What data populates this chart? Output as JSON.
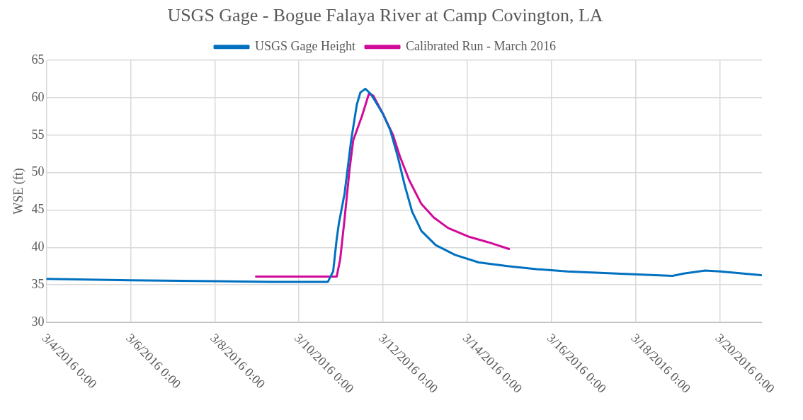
{
  "chart_data": {
    "type": "line",
    "title": "USGS Gage - Bogue Falaya River at Camp Covington, LA",
    "ylabel": "WSE (ft)",
    "xlim": [
      "2016-03-04T00:00",
      "2016-03-21T00:00"
    ],
    "xticks": [
      {
        "value": "2016-03-04T00:00",
        "label": "3/4/2016 0:00"
      },
      {
        "value": "2016-03-06T00:00",
        "label": "3/6/2016 0:00"
      },
      {
        "value": "2016-03-08T00:00",
        "label": "3/8/2016 0:00"
      },
      {
        "value": "2016-03-10T00:00",
        "label": "3/10/2016 0:00"
      },
      {
        "value": "2016-03-12T00:00",
        "label": "3/12/2016 0:00"
      },
      {
        "value": "2016-03-14T00:00",
        "label": "3/14/2016 0:00"
      },
      {
        "value": "2016-03-16T00:00",
        "label": "3/16/2016 0:00"
      },
      {
        "value": "2016-03-18T00:00",
        "label": "3/18/2016 0:00"
      },
      {
        "value": "2016-03-20T00:00",
        "label": "3/20/2016 0:00"
      }
    ],
    "ylim": [
      30,
      65
    ],
    "yticks": [
      30,
      35,
      40,
      45,
      50,
      55,
      60,
      65
    ],
    "grid": true,
    "legend": "top",
    "series": [
      {
        "name": "USGS Gage Height",
        "color": "#0070c0",
        "x": [
          "2016-03-04T00:00",
          "2016-03-06T00:00",
          "2016-03-08T00:00",
          "2016-03-09T08:00",
          "2016-03-10T16:30",
          "2016-03-10T19:30",
          "2016-03-10T21:30",
          "2016-03-10T22:45",
          "2016-03-11T02:00",
          "2016-03-11T05:45",
          "2016-03-11T09:00",
          "2016-03-11T11:00",
          "2016-03-11T13:50",
          "2016-03-11T17:00",
          "2016-03-12T00:00",
          "2016-03-12T04:00",
          "2016-03-12T08:15",
          "2016-03-12T12:25",
          "2016-03-12T16:30",
          "2016-03-12T21:50",
          "2016-03-13T06:00",
          "2016-03-13T17:00",
          "2016-03-14T06:30",
          "2016-03-14T23:00",
          "2016-03-15T15:20",
          "2016-03-16T09:00",
          "2016-03-17T13:10",
          "2016-03-18T21:00",
          "2016-03-19T03:20",
          "2016-03-19T15:35",
          "2016-03-20T00:15",
          "2016-03-20T23:30"
        ],
        "values": [
          35.8,
          35.6,
          35.5,
          35.4,
          35.4,
          36.8,
          41.1,
          43.2,
          47.2,
          54.3,
          59.1,
          60.7,
          61.2,
          60.5,
          57.8,
          55.7,
          52.2,
          48.2,
          44.8,
          42.2,
          40.3,
          39.0,
          38.0,
          37.5,
          37.1,
          36.8,
          36.5,
          36.2,
          36.5,
          36.9,
          36.8,
          36.3
        ]
      },
      {
        "name": "Calibrated Run - March 2016",
        "color": "#d20a9a",
        "x": [
          "2016-03-08T23:30",
          "2016-03-10T21:30",
          "2016-03-10T23:30",
          "2016-03-11T02:00",
          "2016-03-11T04:50",
          "2016-03-11T06:55",
          "2016-03-11T11:50",
          "2016-03-11T15:50",
          "2016-03-11T18:20",
          "2016-03-12T00:00",
          "2016-03-12T05:30",
          "2016-03-12T09:30",
          "2016-03-12T14:50",
          "2016-03-12T21:50",
          "2016-03-13T04:50",
          "2016-03-13T13:00",
          "2016-03-14T01:15",
          "2016-03-14T11:50",
          "2016-03-14T23:45"
        ],
        "values": [
          36.1,
          36.1,
          38.4,
          43.8,
          50.4,
          54.3,
          57.5,
          60.5,
          60.3,
          57.8,
          55.1,
          52.2,
          49.0,
          45.8,
          44.0,
          42.6,
          41.4,
          40.7,
          39.8
        ]
      }
    ]
  }
}
